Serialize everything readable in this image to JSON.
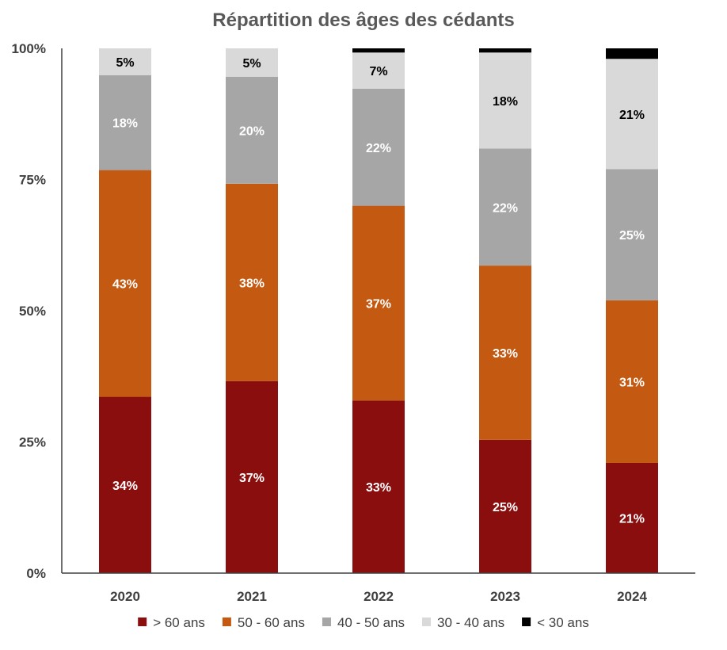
{
  "chart_data": {
    "type": "bar",
    "stacked": true,
    "title": "Répartition des âges des cédants",
    "xlabel": "",
    "ylabel": "",
    "ylim": [
      0,
      100
    ],
    "y_ticks": [
      "0%",
      "25%",
      "50%",
      "75%",
      "100%"
    ],
    "grid": false,
    "legend_position": "bottom",
    "categories": [
      "2020",
      "2021",
      "2022",
      "2023",
      "2024"
    ],
    "series": [
      {
        "name": "> 60 ans",
        "color": "#8B0E0E",
        "label_color": "#ffffff",
        "values": [
          33.6,
          36.6,
          32.9,
          25.4,
          21.0
        ],
        "labels": [
          "34%",
          "37%",
          "33%",
          "25%",
          "21%"
        ]
      },
      {
        "name": "50 - 60 ans",
        "color": "#C45911",
        "label_color": "#ffffff",
        "values": [
          43.2,
          37.6,
          37.1,
          33.2,
          31.0
        ],
        "labels": [
          "43%",
          "38%",
          "37%",
          "33%",
          "31%"
        ]
      },
      {
        "name": "40 - 50 ans",
        "color": "#A6A6A6",
        "label_color": "#ffffff",
        "values": [
          18.1,
          20.4,
          22.3,
          22.3,
          25.0
        ],
        "labels": [
          "18%",
          "20%",
          "22%",
          "22%",
          "25%"
        ]
      },
      {
        "name": "30 - 40 ans",
        "color": "#D9D9D9",
        "label_color": "#000000",
        "values": [
          5.1,
          5.4,
          6.9,
          18.3,
          21.0
        ],
        "labels": [
          "5%",
          "5%",
          "7%",
          "18%",
          "21%"
        ]
      },
      {
        "name": "< 30 ans",
        "color": "#000000",
        "label_color": "#ffffff",
        "values": [
          0,
          0,
          0.8,
          0.8,
          2.0
        ],
        "labels": [
          "",
          "",
          "",
          "",
          ""
        ]
      }
    ]
  }
}
